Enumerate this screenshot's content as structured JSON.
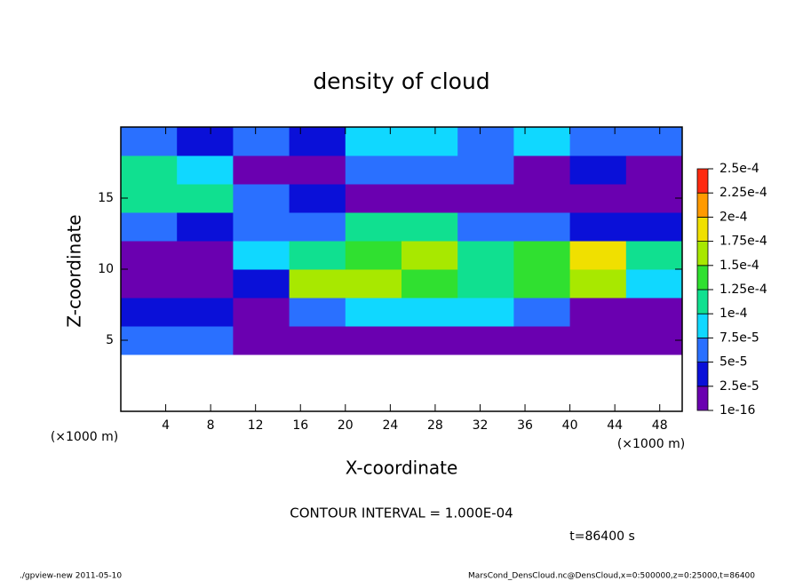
{
  "chart_data": {
    "type": "heatmap",
    "title": "density of cloud",
    "xlabel": "X-coordinate",
    "ylabel": "Z-coordinate",
    "xunit": "(×1000 m)",
    "yunit": "(×1000 m)",
    "note": "CONTOUR INTERVAL = 1.000E-04",
    "time": "t=86400 s",
    "footer_left": "./gpview-new  2011-05-10",
    "footer_right": "MarsCond_DensCloud.nc@DensCloud,x=0:500000,z=0:25000,t=86400",
    "xlim": [
      0,
      50
    ],
    "ylim": [
      0,
      20
    ],
    "xticks": [
      4,
      8,
      12,
      16,
      20,
      24,
      28,
      32,
      36,
      40,
      44,
      48
    ],
    "yticks": [
      5,
      10,
      15
    ],
    "xbins": [
      0,
      5,
      10,
      15,
      20,
      25,
      30,
      35,
      40,
      45,
      50
    ],
    "ybins": [
      0,
      2,
      4,
      6,
      8,
      10,
      12,
      14,
      16,
      18,
      20
    ],
    "values": [
      [
        null,
        null,
        null,
        null,
        null,
        null,
        null,
        null,
        null,
        null
      ],
      [
        null,
        null,
        null,
        null,
        null,
        null,
        null,
        null,
        null,
        null
      ],
      [
        7e-05,
        5e-05,
        1e-05,
        1e-05,
        1e-05,
        1e-05,
        1e-05,
        1e-05,
        1e-05,
        1e-05
      ],
      [
        4e-05,
        3e-05,
        1e-05,
        6e-05,
        9e-05,
        9e-05,
        9e-05,
        6e-05,
        2e-05,
        1e-05
      ],
      [
        1e-05,
        2e-05,
        3e-05,
        0.00016,
        0.00016,
        0.00013,
        0.00012,
        0.00014,
        0.00015,
        9e-05
      ],
      [
        1e-05,
        1e-05,
        8e-05,
        0.00011,
        0.00014,
        0.00015,
        0.00011,
        0.00014,
        0.00018,
        0.00011
      ],
      [
        5e-05,
        4e-05,
        5e-05,
        6e-05,
        0.00012,
        0.00011,
        6e-05,
        5e-05,
        4e-05,
        4e-05
      ],
      [
        0.00011,
        0.00011,
        6e-05,
        3e-05,
        1e-05,
        1e-05,
        2e-05,
        2e-05,
        1e-05,
        1e-05
      ],
      [
        0.0001,
        8e-05,
        1e-05,
        1e-05,
        5e-05,
        7e-05,
        6e-05,
        1e-05,
        3e-05,
        1e-05
      ],
      [
        7e-05,
        4e-05,
        6e-05,
        3e-05,
        8e-05,
        8e-05,
        5e-05,
        8e-05,
        5e-05,
        6e-05
      ]
    ],
    "levels": [
      {
        "value": 1e-16,
        "label": "1e-16"
      },
      {
        "value": 2.5e-05,
        "label": "2.5e-5"
      },
      {
        "value": 5e-05,
        "label": "5e-5"
      },
      {
        "value": 7.5e-05,
        "label": "7.5e-5"
      },
      {
        "value": 0.0001,
        "label": "1e-4"
      },
      {
        "value": 0.000125,
        "label": "1.25e-4"
      },
      {
        "value": 0.00015,
        "label": "1.5e-4"
      },
      {
        "value": 0.000175,
        "label": "1.75e-4"
      },
      {
        "value": 0.0002,
        "label": "2e-4"
      },
      {
        "value": 0.000225,
        "label": "2.25e-4"
      },
      {
        "value": 0.00025,
        "label": "2.5e-4"
      }
    ],
    "colors": [
      "#6a00b0",
      "#0a10d8",
      "#2a70ff",
      "#10d8ff",
      "#10e090",
      "#30e030",
      "#a8e800",
      "#f0e000",
      "#ff9a00",
      "#ff2a10",
      "#f4a0a0"
    ]
  }
}
